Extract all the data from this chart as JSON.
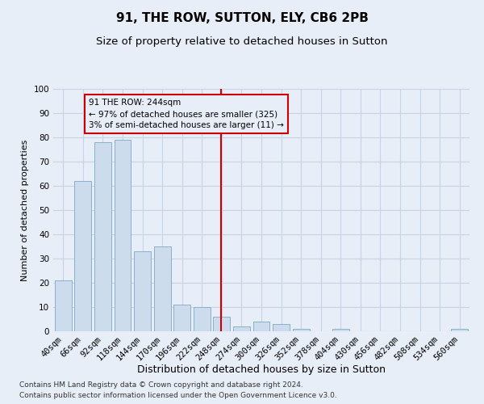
{
  "title": "91, THE ROW, SUTTON, ELY, CB6 2PB",
  "subtitle": "Size of property relative to detached houses in Sutton",
  "xlabel": "Distribution of detached houses by size in Sutton",
  "ylabel": "Number of detached properties",
  "categories": [
    "40sqm",
    "66sqm",
    "92sqm",
    "118sqm",
    "144sqm",
    "170sqm",
    "196sqm",
    "222sqm",
    "248sqm",
    "274sqm",
    "300sqm",
    "326sqm",
    "352sqm",
    "378sqm",
    "404sqm",
    "430sqm",
    "456sqm",
    "482sqm",
    "508sqm",
    "534sqm",
    "560sqm"
  ],
  "bar_heights": [
    21,
    62,
    78,
    79,
    33,
    35,
    11,
    10,
    6,
    2,
    4,
    3,
    1,
    0,
    1,
    0,
    0,
    0,
    0,
    0,
    1
  ],
  "bar_color": "#ccdcec",
  "bar_edge_color": "#8ab0cc",
  "ylim": [
    0,
    100
  ],
  "yticks": [
    0,
    10,
    20,
    30,
    40,
    50,
    60,
    70,
    80,
    90,
    100
  ],
  "property_label": "91 THE ROW: 244sqm",
  "annotation_line1": "← 97% of detached houses are smaller (325)",
  "annotation_line2": "3% of semi-detached houses are larger (11) →",
  "vline_color": "#cc0000",
  "annotation_border_color": "#cc0000",
  "grid_color": "#c8d4e4",
  "background_color": "#e8eef8",
  "footer_line1": "Contains HM Land Registry data © Crown copyright and database right 2024.",
  "footer_line2": "Contains public sector information licensed under the Open Government Licence v3.0.",
  "title_fontsize": 11,
  "subtitle_fontsize": 9.5,
  "xlabel_fontsize": 9,
  "ylabel_fontsize": 8,
  "tick_fontsize": 7.5,
  "footer_fontsize": 6.5
}
